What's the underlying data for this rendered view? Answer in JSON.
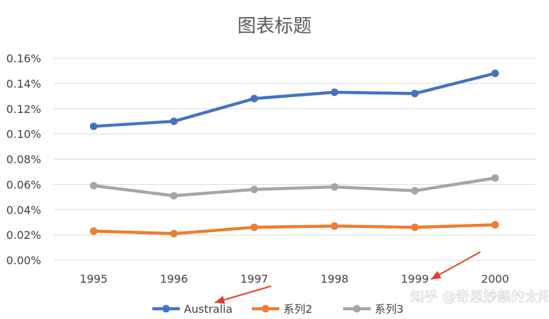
{
  "chart_data": {
    "type": "line",
    "title": "图表标题",
    "xlabel": "",
    "ylabel": "",
    "categories": [
      "1995",
      "1996",
      "1997",
      "1998",
      "1999",
      "2000"
    ],
    "ylim": [
      0,
      0.16
    ],
    "y_ticks": [
      "0.00%",
      "0.02%",
      "0.04%",
      "0.06%",
      "0.08%",
      "0.10%",
      "0.12%",
      "0.14%",
      "0.16%"
    ],
    "grid": true,
    "legend_position": "bottom",
    "series": [
      {
        "name": "Australia",
        "color": "#4472C4",
        "values": [
          0.106,
          0.11,
          0.128,
          0.133,
          0.132,
          0.148
        ]
      },
      {
        "name": "系列2",
        "color": "#ED7D31",
        "values": [
          0.023,
          0.021,
          0.026,
          0.027,
          0.026,
          0.028
        ]
      },
      {
        "name": "系列3",
        "color": "#A5A5A5",
        "values": [
          0.059,
          0.051,
          0.056,
          0.058,
          0.055,
          0.065
        ]
      }
    ],
    "annotation_color": "#E8392B"
  },
  "watermark": "知乎 @奇思妙想的太阳"
}
